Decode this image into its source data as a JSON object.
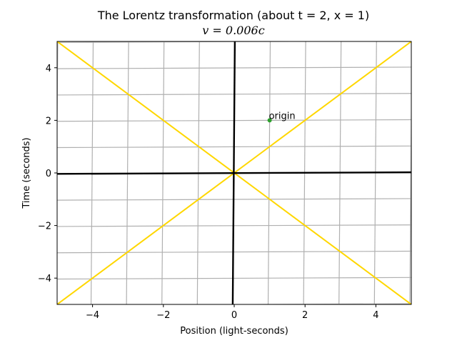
{
  "chart_data": {
    "type": "line",
    "title": "The Lorentz transformation (about t = 2, x = 1)",
    "subtitle": "v = 0.006c",
    "xlabel": "Position (light-seconds)",
    "ylabel": "Time (seconds)",
    "xlim": [
      -5,
      5
    ],
    "ylim": [
      -5,
      5
    ],
    "xticks": [
      -4,
      -2,
      0,
      2,
      4
    ],
    "yticks": [
      -4,
      -2,
      0,
      2,
      4
    ],
    "xtick_labels": [
      "−4",
      "−2",
      "0",
      "2",
      "4"
    ],
    "ytick_labels": [
      "−4",
      "−2",
      "0",
      "2",
      "4"
    ],
    "grid": true,
    "grid_color": "#b0b0b0",
    "grid_lines": [
      -5,
      -4,
      -3,
      -2,
      -1,
      0,
      1,
      2,
      3,
      4,
      5
    ],
    "velocity": 0.006,
    "transform_center": {
      "x": 1,
      "t": 2
    },
    "axes_color": "#000000",
    "light_cone_color": "#ffd700",
    "series": [
      {
        "kind": "light-cone",
        "x": [
          -5,
          5
        ],
        "y": [
          -5,
          5
        ]
      },
      {
        "kind": "light-cone",
        "x": [
          -5,
          5
        ],
        "y": [
          5,
          -5
        ]
      }
    ],
    "annotations": [
      {
        "text": "origin",
        "x": 1,
        "y": 2,
        "marker_color": "#2ca02c"
      }
    ]
  }
}
